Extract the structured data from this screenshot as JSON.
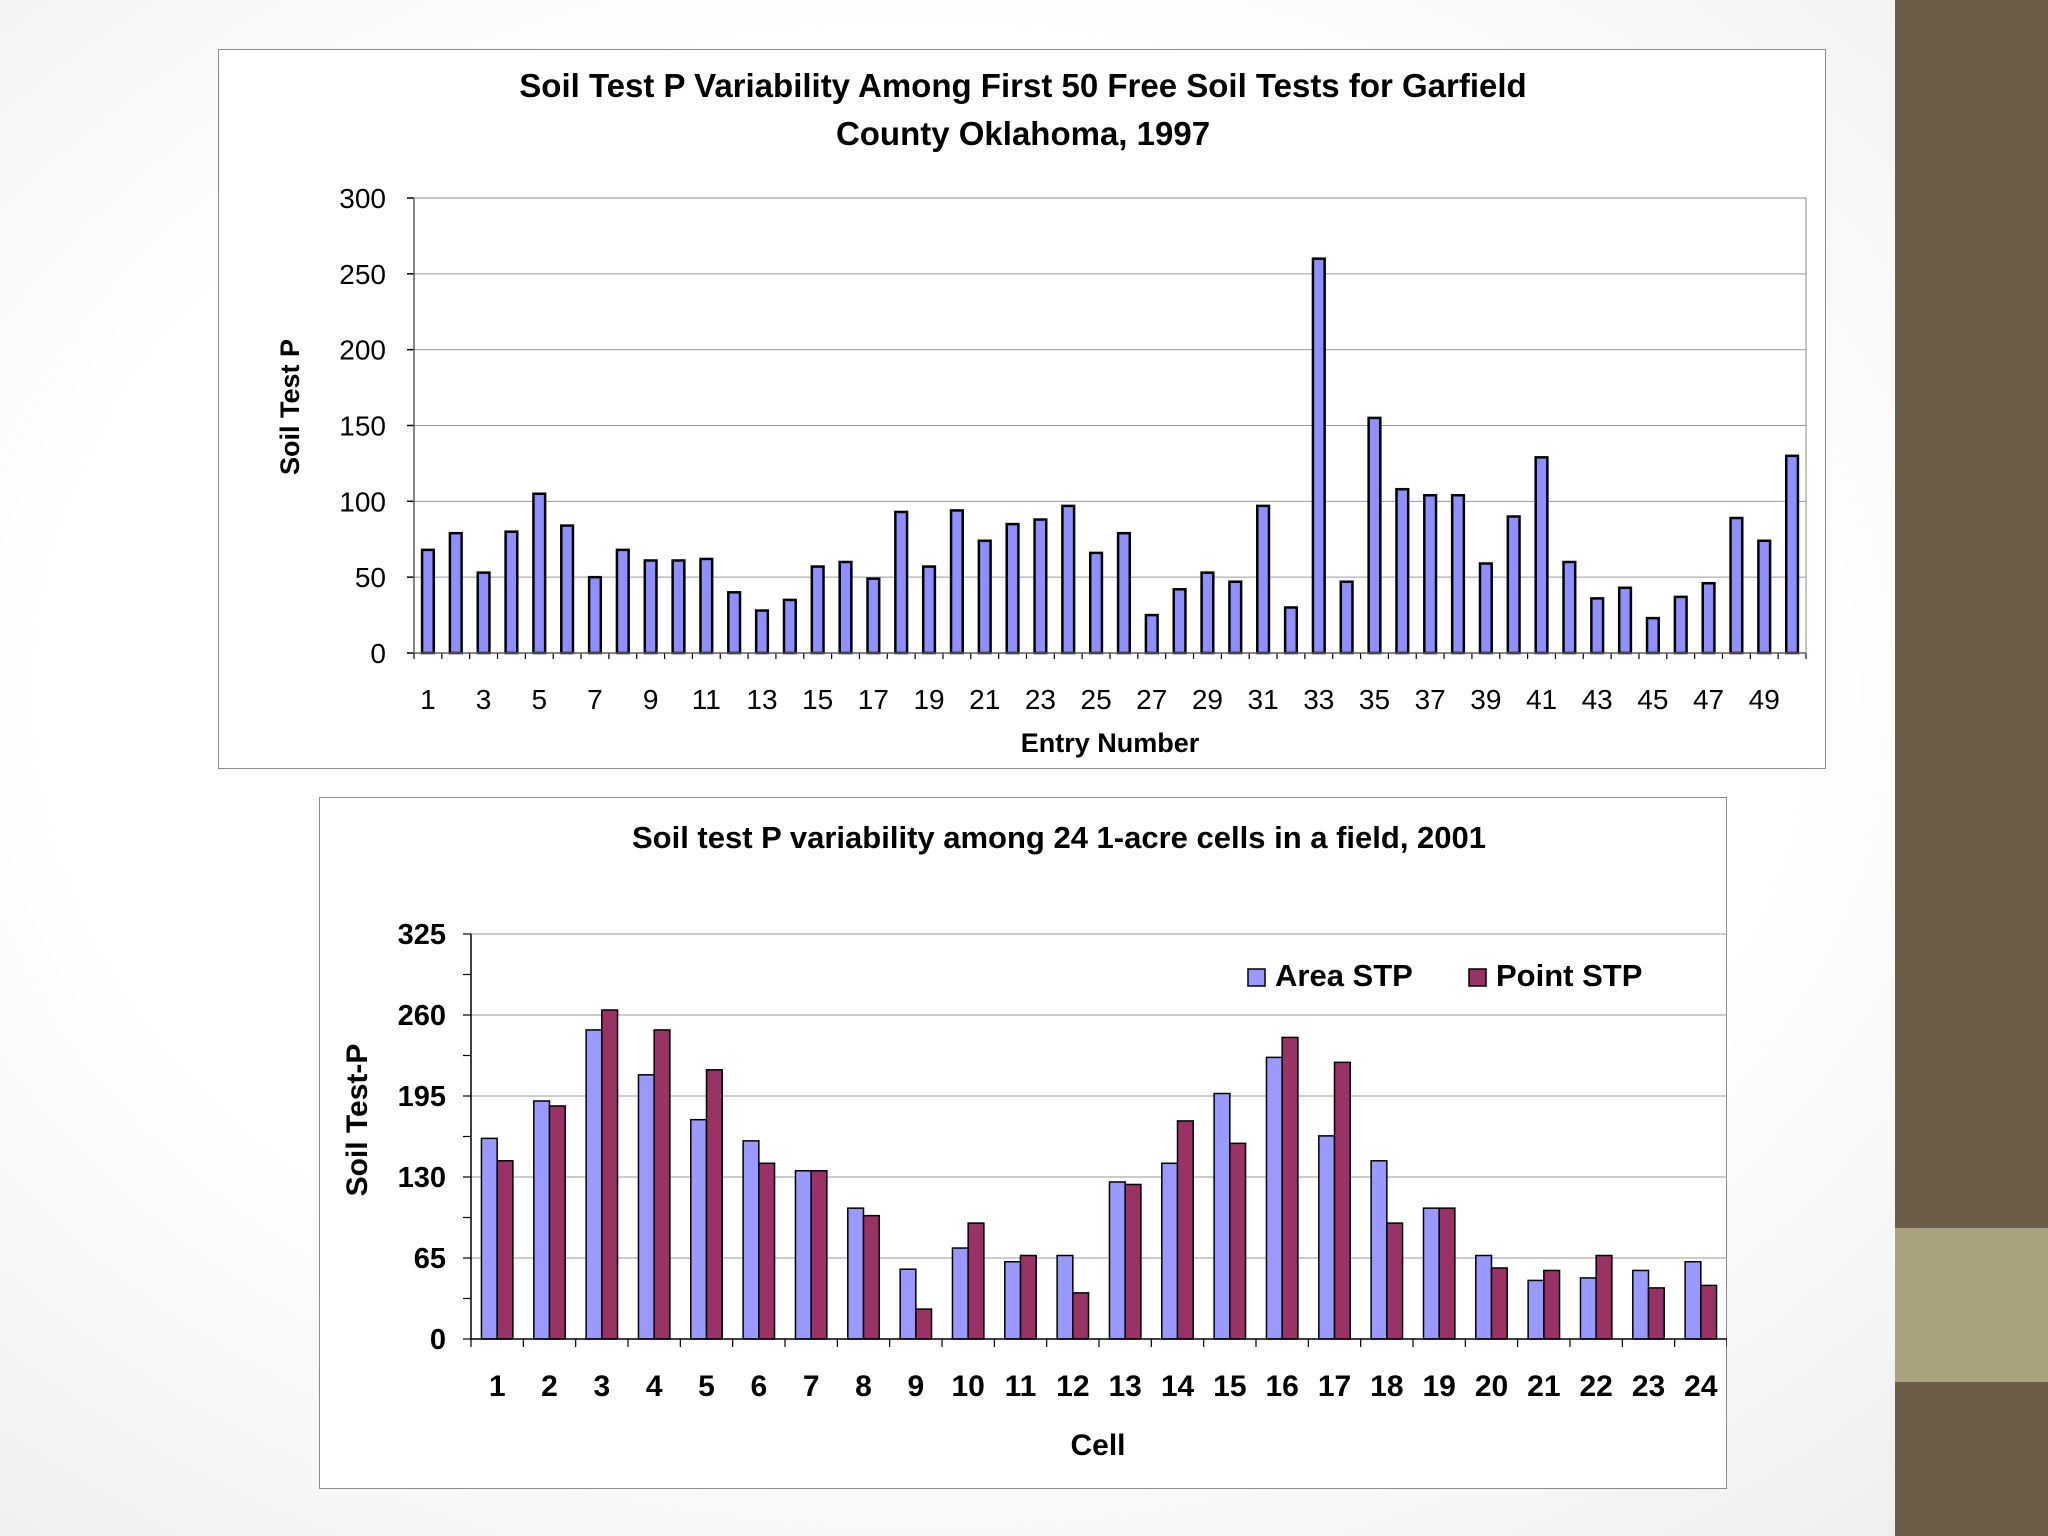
{
  "colors": {
    "sidebar": "#6a5d4a",
    "sidebar_accent": "#a8a17e",
    "area_fill": "#9999ff",
    "point_fill": "#993366",
    "bar_fill_top": "#8f8fff"
  },
  "chart_data": [
    {
      "type": "bar",
      "title_line1": "Soil Test P Variability Among First 50 Free Soil Tests for Garfield",
      "title_line2": "County Oklahoma, 1997",
      "xlabel": "Entry Number",
      "ylabel": "Soil Test P",
      "ylim": [
        0,
        300
      ],
      "yticks": [
        0,
        50,
        100,
        150,
        200,
        250,
        300
      ],
      "xtick_labels": [
        "1",
        "3",
        "5",
        "7",
        "9",
        "11",
        "13",
        "15",
        "17",
        "19",
        "21",
        "23",
        "25",
        "27",
        "29",
        "31",
        "33",
        "35",
        "37",
        "39",
        "41",
        "43",
        "45",
        "47",
        "49"
      ],
      "categories": [
        1,
        2,
        3,
        4,
        5,
        6,
        7,
        8,
        9,
        10,
        11,
        12,
        13,
        14,
        15,
        16,
        17,
        18,
        19,
        20,
        21,
        22,
        23,
        24,
        25,
        26,
        27,
        28,
        29,
        30,
        31,
        32,
        33,
        34,
        35,
        36,
        37,
        38,
        39,
        40,
        41,
        42,
        43,
        44,
        45,
        46,
        47,
        48,
        49,
        50
      ],
      "values": [
        68,
        79,
        53,
        80,
        105,
        84,
        50,
        68,
        61,
        61,
        62,
        40,
        28,
        35,
        57,
        60,
        49,
        93,
        57,
        94,
        74,
        85,
        88,
        97,
        66,
        79,
        25,
        42,
        53,
        47,
        97,
        30,
        260,
        47,
        155,
        108,
        104,
        104,
        59,
        90,
        129,
        60,
        36,
        43,
        23,
        37,
        46,
        89,
        74,
        130
      ]
    },
    {
      "type": "bar",
      "title": "Soil test P variability among 24 1-acre cells in a field, 2001",
      "xlabel": "Cell",
      "ylabel": "Soil Test-P",
      "ylim": [
        0,
        325
      ],
      "yticks": [
        0,
        65,
        130,
        195,
        260,
        325
      ],
      "categories": [
        "1",
        "2",
        "3",
        "4",
        "5",
        "6",
        "7",
        "8",
        "9",
        "10",
        "11",
        "12",
        "13",
        "14",
        "15",
        "16",
        "17",
        "18",
        "19",
        "20",
        "21",
        "22",
        "23",
        "24"
      ],
      "legend": {
        "position": "top-right"
      },
      "series": [
        {
          "name": "Area STP",
          "values": [
            161,
            191,
            248,
            212,
            176,
            159,
            135,
            105,
            56,
            73,
            62,
            67,
            126,
            141,
            197,
            226,
            163,
            143,
            105,
            67,
            47,
            49,
            55,
            62
          ]
        },
        {
          "name": "Point STP",
          "values": [
            143,
            187,
            264,
            248,
            216,
            141,
            135,
            99,
            24,
            93,
            67,
            37,
            124,
            175,
            157,
            242,
            222,
            93,
            105,
            57,
            55,
            67,
            41,
            43
          ]
        }
      ]
    }
  ]
}
